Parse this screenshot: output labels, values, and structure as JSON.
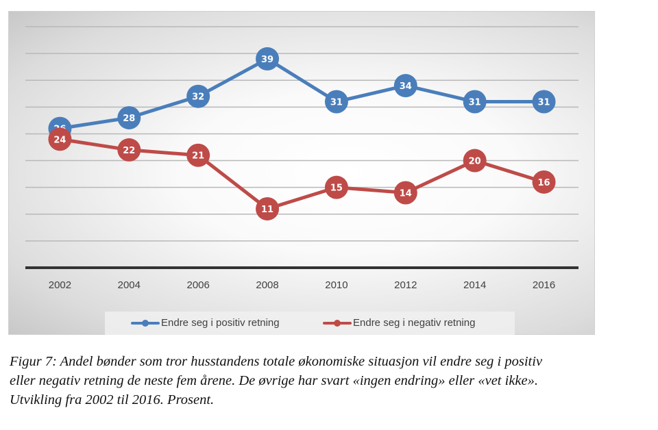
{
  "chart_data": {
    "type": "line",
    "categories": [
      "2002",
      "2004",
      "2006",
      "2008",
      "2010",
      "2012",
      "2014",
      "2016"
    ],
    "series": [
      {
        "name": "Endre seg i positiv retning",
        "color": "#4a7ebb",
        "values": [
          26,
          28,
          32,
          39,
          31,
          34,
          31,
          31
        ]
      },
      {
        "name": "Endre seg i negativ retning",
        "color": "#be4b48",
        "values": [
          24,
          22,
          21,
          11,
          15,
          14,
          20,
          16
        ]
      }
    ],
    "ylim": [
      0,
      45
    ],
    "y_gridlines": [
      5,
      10,
      15,
      20,
      25,
      30,
      35,
      40,
      45
    ],
    "y_tick_labels_shown": false,
    "data_labels": true,
    "grid": true,
    "legend": "bottom"
  },
  "caption": [
    "Figur 7: Andel bønder som tror husstandens totale økonomiske situasjon vil endre seg i positiv",
    "eller negativ retning de neste fem årene. De øvrige har svart «ingen endring» eller «vet ikke».",
    "Utvikling fra 2002 til 2016. Prosent."
  ]
}
